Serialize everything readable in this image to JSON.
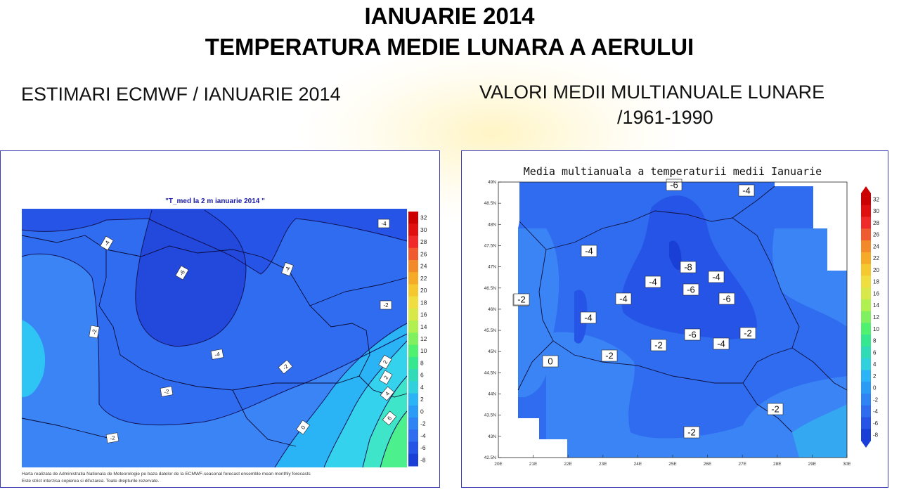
{
  "header": {
    "title_line1": "IANUARIE 2014",
    "title_line2": "TEMPERATURA MEDIE LUNARA A AERULUI"
  },
  "left_section": {
    "subtitle": "ESTIMARI ECMWF / IANUARIE 2014",
    "map": {
      "title": "\"T_med la 2 m ianuarie 2014 \"",
      "footer_line1": "Harta realizata de Administratia Nationala de Meteorologie pe baza datelor de la ECMWF-seasonal forecast ensemble mean monthly forecasts",
      "footer_line2": "Este strict interzisa copierea si difuzarea. Toate drepturile rezervate.",
      "contour_labels": [
        "-4",
        "-4",
        "-6",
        "-4",
        "-2",
        "-2",
        "-4",
        "-2",
        "-2",
        "-2",
        "0",
        "2",
        "2",
        "4",
        "6"
      ],
      "colorbar_ticks": [
        "32",
        "30",
        "28",
        "26",
        "24",
        "22",
        "20",
        "18",
        "16",
        "14",
        "12",
        "10",
        "8",
        "6",
        "4",
        "2",
        "0",
        "-2",
        "-4",
        "-6",
        "-8"
      ]
    }
  },
  "right_section": {
    "subtitle_line1": "VALORI MEDII MULTIANUALE LUNARE",
    "subtitle_line2": "/1961-1990",
    "map": {
      "title": "Media multianuala a temperaturii medii Ianuarie",
      "lat_labels": [
        "49N",
        "48.5N",
        "48N",
        "47.5N",
        "47N",
        "46.5N",
        "46N",
        "45.5N",
        "45N",
        "44.5N",
        "44N",
        "43.5N",
        "43N",
        "42.5N"
      ],
      "lon_labels": [
        "20E",
        "21E",
        "22E",
        "23E",
        "24E",
        "25E",
        "26E",
        "27E",
        "28E",
        "29E",
        "30E"
      ],
      "contour_labels": [
        "-6",
        "-4",
        "-4",
        "-8",
        "-4",
        "-4",
        "-6",
        "-2",
        "-4",
        "-6",
        "-4",
        "-6",
        "-2",
        "-2",
        "-4",
        "-2",
        "0",
        "-2",
        "-2",
        "-2"
      ],
      "colorbar_ticks": [
        "32",
        "30",
        "28",
        "26",
        "24",
        "22",
        "20",
        "18",
        "16",
        "14",
        "12",
        "10",
        "8",
        "6",
        "4",
        "2",
        "0",
        "-2",
        "-4",
        "-6",
        "-8"
      ]
    }
  },
  "colors": {
    "t_minus8": "#1a3fd6",
    "t_minus6": "#2654e6",
    "t_minus4": "#2f6cf0",
    "t_minus2": "#3f8ff7",
    "t_0": "#2ab4f5",
    "t_2": "#35d2ee",
    "t_4": "#3fe5c8",
    "t_6": "#4cf08c",
    "frame": "#3a3ab5",
    "title_blue": "#1a1aa8"
  }
}
